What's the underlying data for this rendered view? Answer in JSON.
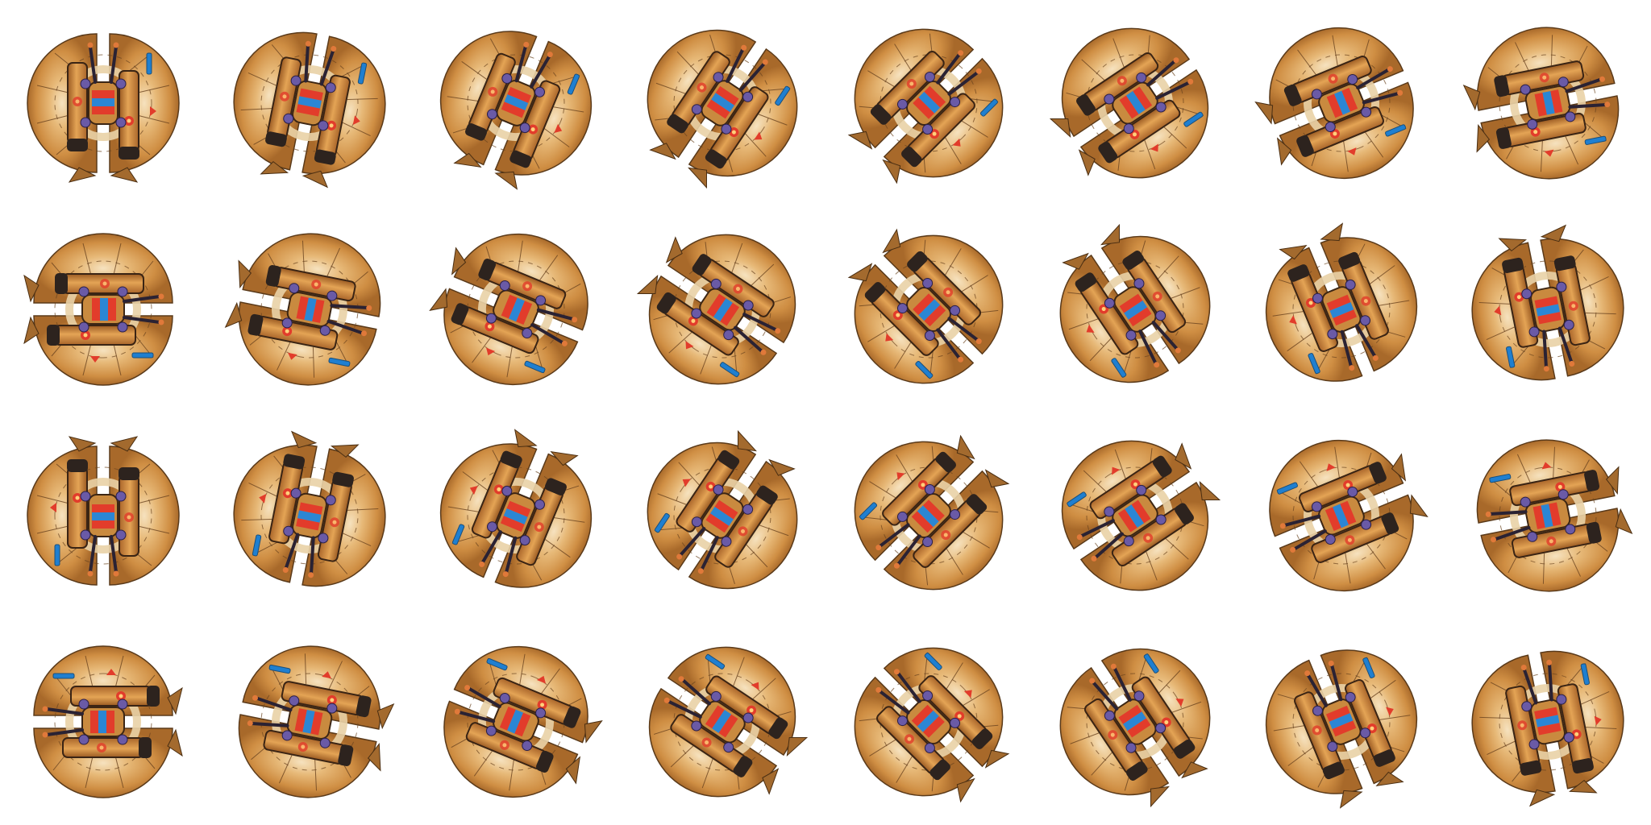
{
  "sheet": {
    "type": "sprite-sheet",
    "subject": "rotating-saucer-ship",
    "columns": 8,
    "rows": 4,
    "frame_count": 32,
    "degrees_per_frame": 11.25
  },
  "colors": {
    "background": "#ffffff",
    "hull_outer": "#b87a32",
    "hull_mid": "#d69a4a",
    "hull_inner": "#f2d3a2",
    "hull_ring": "#e8c78e",
    "panel_lines": "#5a3a1a",
    "engine_body": "#d7903d",
    "engine_dark": "#3a2a20",
    "accent_red": "#e23c2b",
    "accent_blue": "#2b86d4",
    "stripe_blue": "#1f7fd0",
    "node_purple": "#6a5aa6",
    "fin_tan": "#a36a2e"
  },
  "frames": [
    {
      "index": 0,
      "angle": 0
    },
    {
      "index": 1,
      "angle": 11.25
    },
    {
      "index": 2,
      "angle": 22.5
    },
    {
      "index": 3,
      "angle": 33.75
    },
    {
      "index": 4,
      "angle": 45
    },
    {
      "index": 5,
      "angle": 56.25
    },
    {
      "index": 6,
      "angle": 67.5
    },
    {
      "index": 7,
      "angle": 78.75
    },
    {
      "index": 8,
      "angle": 90
    },
    {
      "index": 9,
      "angle": 101.25
    },
    {
      "index": 10,
      "angle": 112.5
    },
    {
      "index": 11,
      "angle": 123.75
    },
    {
      "index": 12,
      "angle": 135
    },
    {
      "index": 13,
      "angle": 146.25
    },
    {
      "index": 14,
      "angle": 157.5
    },
    {
      "index": 15,
      "angle": 168.75
    },
    {
      "index": 16,
      "angle": 180
    },
    {
      "index": 17,
      "angle": 191.25
    },
    {
      "index": 18,
      "angle": 202.5
    },
    {
      "index": 19,
      "angle": 213.75
    },
    {
      "index": 20,
      "angle": 225
    },
    {
      "index": 21,
      "angle": 236.25
    },
    {
      "index": 22,
      "angle": 247.5
    },
    {
      "index": 23,
      "angle": 258.75
    },
    {
      "index": 24,
      "angle": 270
    },
    {
      "index": 25,
      "angle": 281.25
    },
    {
      "index": 26,
      "angle": 292.5
    },
    {
      "index": 27,
      "angle": 303.75
    },
    {
      "index": 28,
      "angle": 315
    },
    {
      "index": 29,
      "angle": 326.25
    },
    {
      "index": 30,
      "angle": 337.5
    },
    {
      "index": 31,
      "angle": 348.75
    }
  ]
}
